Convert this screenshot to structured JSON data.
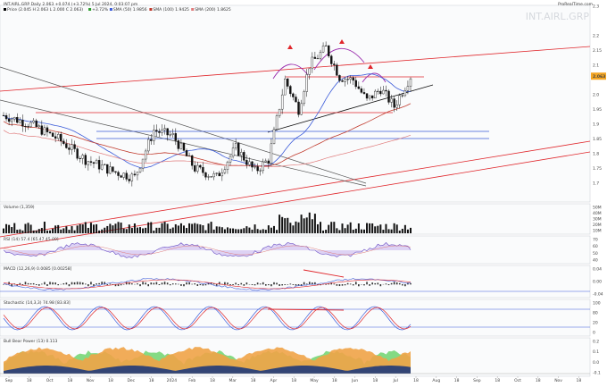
{
  "header": {
    "title": "INT.AIRL.GRP Daily 2.063 +0.074 (+3.72%) 5 Jul 2024, 0:03:07 pm",
    "legend": [
      {
        "label": "Price (2.045 H 2.063 L 2.000 C 2.063)",
        "color": "#000000"
      },
      {
        "label": "+3.72%",
        "color": "#2a9d2a"
      },
      {
        "label": "SMA (50) 1.9856",
        "color": "#3b5bd9"
      },
      {
        "label": "SMA (100) 1.9425",
        "color": "#c0392b"
      },
      {
        "label": "SMA (200) 1.8625",
        "color": "#e07b7b"
      }
    ]
  },
  "watermark": "INT.AIRL.GRP",
  "brand": "ProRealTime.com",
  "price_badge": "2.063",
  "chart_data": {
    "type": "candlestick",
    "title": "INT.AIRL.GRP Daily",
    "last_close": 2.063,
    "price_ticks": [
      "2.3",
      "2.2",
      "2.15",
      "2.1",
      "2.063",
      "2.0",
      "1.95",
      "1.9",
      "1.85",
      "1.8",
      "1.75",
      "1.7"
    ],
    "date_ticks": [
      "Sep",
      "18",
      "Oct",
      "18",
      "Nov",
      "18",
      "Dec",
      "18",
      "2024",
      "Feb",
      "18",
      "Mar",
      "18",
      "Apr",
      "18",
      "May",
      "18",
      "Jun",
      "18",
      "Jul",
      "18",
      "Aug",
      "18",
      "Sep",
      "18",
      "Oct",
      "18",
      "Nov",
      "18"
    ],
    "volume_label": "Volume (1,359)",
    "volume_ticks": [
      "50M",
      "40M",
      "30M",
      "20M",
      "10M"
    ],
    "rsi_label": "RSI (14) 57.4 [65.47 45.00]",
    "rsi_ticks": [
      "70",
      "60",
      "50",
      "40"
    ],
    "macd_label": "MACD (12,26,9) 0.0085 [0.00258]",
    "macd_ticks": [
      "0.04",
      "0.00",
      "-0.04"
    ],
    "stoch_label": "Stochastic (14,3,3) 74.98 [83.83]",
    "stoch_ticks": [
      "100",
      "80",
      "20",
      "0"
    ],
    "lower_label": "Bull Bear Power (13) 0.113",
    "lower_ticks": [
      "0.2",
      "0.1",
      "0.0",
      "-0.1"
    ]
  }
}
